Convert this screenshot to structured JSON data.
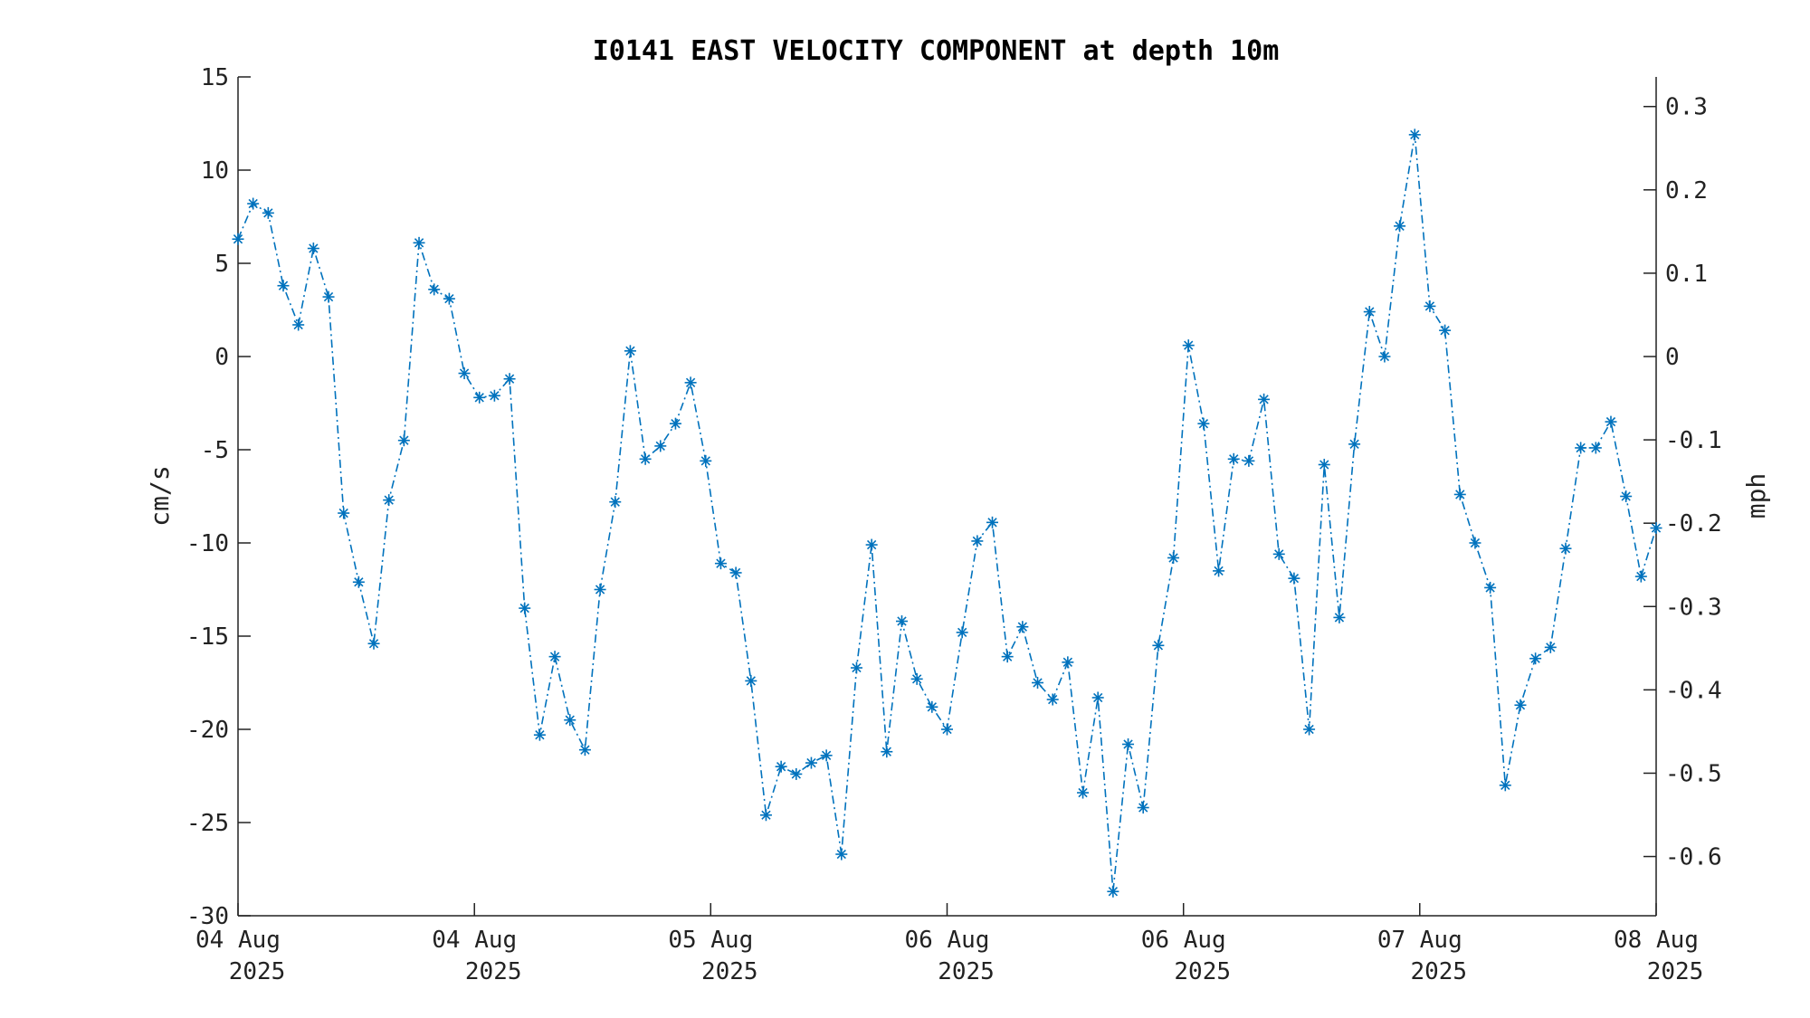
{
  "chart_data": {
    "type": "line",
    "title": "I0141 EAST VELOCITY COMPONENT at depth 10m",
    "ylabel": "cm/s",
    "y2label": "mph",
    "ylim": [
      -30,
      15
    ],
    "yticks": [
      15,
      10,
      5,
      0,
      -5,
      -10,
      -15,
      -20,
      -25,
      -30
    ],
    "y2ticks": [
      0.3,
      0.2,
      0.1,
      0,
      -0.1,
      -0.2,
      -0.3,
      -0.4,
      -0.5,
      -0.6
    ],
    "y2ticklabels": [
      "0.3",
      "0.2",
      "0.1",
      "0",
      "-0.1",
      "-0.2",
      "-0.3",
      "-0.4",
      "-0.5",
      "-0.6"
    ],
    "xlim": [
      0,
      94
    ],
    "xticks": [
      0,
      15.67,
      31.33,
      47,
      62.67,
      78.33,
      94
    ],
    "xticklabels": [
      {
        "line1": "04 Aug",
        "line2": "2025"
      },
      {
        "line1": "04 Aug",
        "line2": "2025"
      },
      {
        "line1": "05 Aug",
        "line2": "2025"
      },
      {
        "line1": "06 Aug",
        "line2": "2025"
      },
      {
        "line1": "06 Aug",
        "line2": "2025"
      },
      {
        "line1": "07 Aug",
        "line2": "2025"
      },
      {
        "line1": "08 Aug",
        "line2": "2025"
      }
    ],
    "series": [
      {
        "color": "#0072BD",
        "marker": "asterisk",
        "linestyle": "dash-dot",
        "values": [
          6.3,
          8.2,
          7.7,
          3.8,
          1.7,
          5.8,
          3.2,
          -8.4,
          -12.1,
          -15.4,
          -7.7,
          -4.5,
          6.1,
          3.6,
          3.1,
          -0.9,
          -2.2,
          -2.1,
          -1.2,
          -13.5,
          -20.3,
          -16.1,
          -19.5,
          -21.1,
          -12.5,
          -7.8,
          0.3,
          -5.5,
          -4.8,
          -3.6,
          -1.4,
          -5.6,
          -11.1,
          -11.6,
          -17.4,
          -24.6,
          -22.0,
          -22.4,
          -21.8,
          -21.4,
          -26.7,
          -16.7,
          -10.1,
          -21.2,
          -14.2,
          -17.3,
          -18.8,
          -20.0,
          -14.8,
          -9.9,
          -8.9,
          -16.1,
          -14.5,
          -17.5,
          -18.4,
          -16.4,
          -23.4,
          -18.3,
          -28.7,
          -20.8,
          -24.2,
          -15.5,
          -10.8,
          0.6,
          -3.6,
          -11.5,
          -5.5,
          -5.6,
          -2.3,
          -10.6,
          -11.9,
          -20.0,
          -5.8,
          -14.0,
          -4.7,
          2.4,
          0.0,
          7.0,
          11.9,
          2.7,
          1.4,
          -7.4,
          -10.0,
          -12.4,
          -23.0,
          -18.7,
          -16.2,
          -15.6,
          -10.3,
          -4.9,
          -4.9,
          -3.5,
          -7.5,
          -11.8,
          -9.2
        ]
      }
    ]
  }
}
